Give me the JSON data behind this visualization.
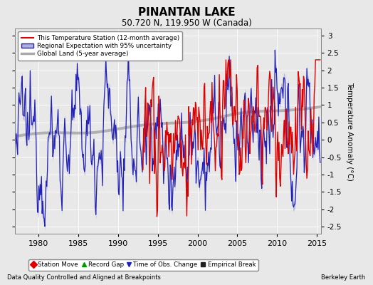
{
  "title": "PINANTAN LAKE",
  "subtitle": "50.720 N, 119.950 W (Canada)",
  "ylabel": "Temperature Anomaly (°C)",
  "xlabel_left": "Data Quality Controlled and Aligned at Breakpoints",
  "xlabel_right": "Berkeley Earth",
  "xlim": [
    1977,
    2015.5
  ],
  "ylim": [
    -2.7,
    3.2
  ],
  "yticks": [
    -2.5,
    -2,
    -1.5,
    -1,
    -0.5,
    0,
    0.5,
    1,
    1.5,
    2,
    2.5,
    3
  ],
  "xticks": [
    1980,
    1985,
    1990,
    1995,
    2000,
    2005,
    2010,
    2015
  ],
  "bg_color": "#e8e8e8",
  "plot_bg_color": "#e8e8e8",
  "station_color": "#dd0000",
  "regional_color": "#2222bb",
  "regional_fill_color": "#b0b0dd",
  "global_color": "#aaaaaa",
  "legend_entries": [
    "This Temperature Station (12-month average)",
    "Regional Expectation with 95% uncertainty",
    "Global Land (5-year average)"
  ],
  "bottom_legend": [
    {
      "label": "Station Move",
      "color": "#dd0000",
      "marker": "D"
    },
    {
      "label": "Record Gap",
      "color": "#009900",
      "marker": "^"
    },
    {
      "label": "Time of Obs. Change",
      "color": "#2222bb",
      "marker": "v"
    },
    {
      "label": "Empirical Break",
      "color": "#222222",
      "marker": "s"
    }
  ],
  "seed": 12345,
  "start_year": 1977.0,
  "end_year": 2015.42,
  "n_points": 461,
  "station_start_year": 1993.0
}
